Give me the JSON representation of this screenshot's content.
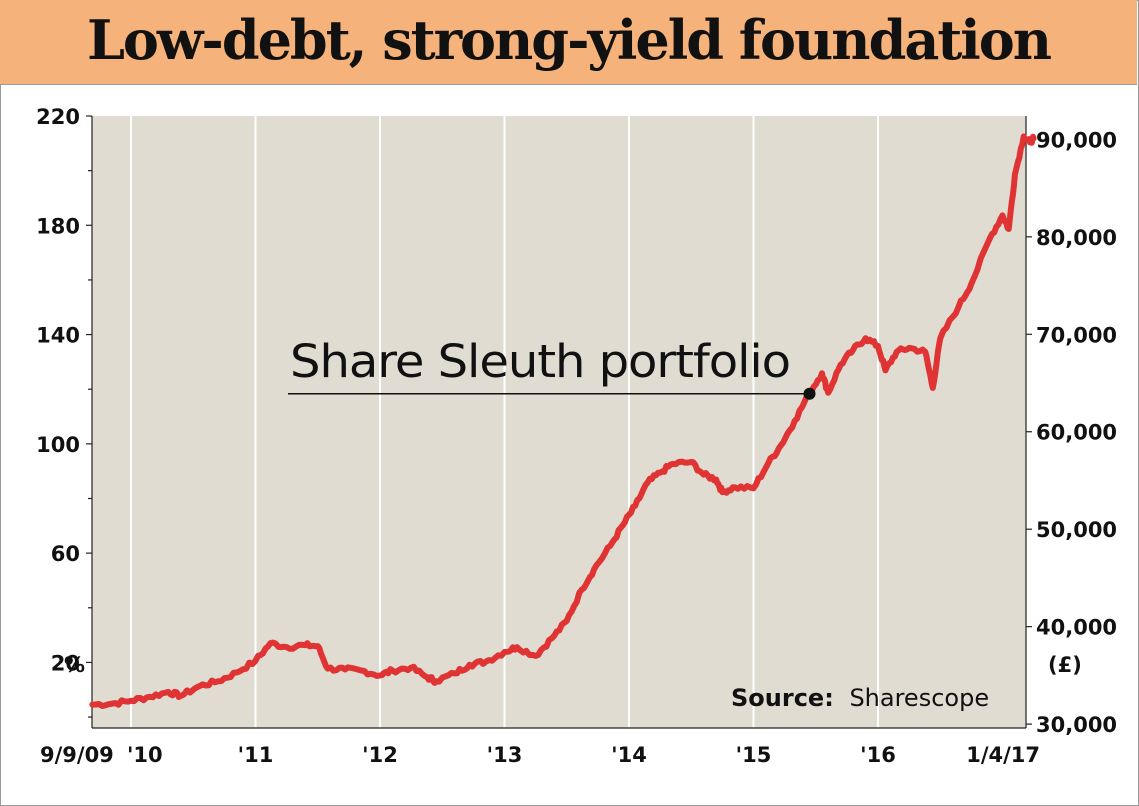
{
  "title": "Low-debt, strong-yield foundation",
  "chart_data": {
    "type": "line",
    "title": "Low-debt, strong-yield foundation",
    "series": [
      {
        "name": "Share Sleuth portfolio",
        "color": "#e03333",
        "points": [
          {
            "x": 2009.69,
            "y": 32000
          },
          {
            "x": 2009.85,
            "y": 32100
          },
          {
            "x": 2010.0,
            "y": 32400
          },
          {
            "x": 2010.15,
            "y": 32800
          },
          {
            "x": 2010.3,
            "y": 33300
          },
          {
            "x": 2010.4,
            "y": 32900
          },
          {
            "x": 2010.55,
            "y": 33900
          },
          {
            "x": 2010.7,
            "y": 34400
          },
          {
            "x": 2010.85,
            "y": 35300
          },
          {
            "x": 2011.0,
            "y": 36500
          },
          {
            "x": 2011.12,
            "y": 38300
          },
          {
            "x": 2011.25,
            "y": 37900
          },
          {
            "x": 2011.4,
            "y": 38100
          },
          {
            "x": 2011.5,
            "y": 38000
          },
          {
            "x": 2011.58,
            "y": 35700
          },
          {
            "x": 2011.72,
            "y": 35600
          },
          {
            "x": 2011.85,
            "y": 35500
          },
          {
            "x": 2012.0,
            "y": 35000
          },
          {
            "x": 2012.1,
            "y": 35500
          },
          {
            "x": 2012.25,
            "y": 35800
          },
          {
            "x": 2012.38,
            "y": 34800
          },
          {
            "x": 2012.45,
            "y": 34400
          },
          {
            "x": 2012.6,
            "y": 35200
          },
          {
            "x": 2012.72,
            "y": 36100
          },
          {
            "x": 2012.85,
            "y": 36400
          },
          {
            "x": 2013.0,
            "y": 37400
          },
          {
            "x": 2013.1,
            "y": 37900
          },
          {
            "x": 2013.25,
            "y": 37000
          },
          {
            "x": 2013.38,
            "y": 38800
          },
          {
            "x": 2013.5,
            "y": 40600
          },
          {
            "x": 2013.62,
            "y": 43800
          },
          {
            "x": 2013.72,
            "y": 45900
          },
          {
            "x": 2013.85,
            "y": 48300
          },
          {
            "x": 2013.95,
            "y": 50400
          },
          {
            "x": 2014.05,
            "y": 52400
          },
          {
            "x": 2014.15,
            "y": 54800
          },
          {
            "x": 2014.25,
            "y": 55800
          },
          {
            "x": 2014.35,
            "y": 56700
          },
          {
            "x": 2014.5,
            "y": 56900
          },
          {
            "x": 2014.6,
            "y": 55600
          },
          {
            "x": 2014.7,
            "y": 55100
          },
          {
            "x": 2014.75,
            "y": 53800
          },
          {
            "x": 2014.85,
            "y": 54300
          },
          {
            "x": 2015.0,
            "y": 54200
          },
          {
            "x": 2015.12,
            "y": 56800
          },
          {
            "x": 2015.22,
            "y": 58600
          },
          {
            "x": 2015.33,
            "y": 61100
          },
          {
            "x": 2015.45,
            "y": 64000
          },
          {
            "x": 2015.55,
            "y": 66000
          },
          {
            "x": 2015.6,
            "y": 64000
          },
          {
            "x": 2015.7,
            "y": 66900
          },
          {
            "x": 2015.8,
            "y": 68400
          },
          {
            "x": 2015.9,
            "y": 69600
          },
          {
            "x": 2016.0,
            "y": 68800
          },
          {
            "x": 2016.06,
            "y": 66300
          },
          {
            "x": 2016.15,
            "y": 68200
          },
          {
            "x": 2016.25,
            "y": 68600
          },
          {
            "x": 2016.38,
            "y": 68200
          },
          {
            "x": 2016.44,
            "y": 64500
          },
          {
            "x": 2016.5,
            "y": 69600
          },
          {
            "x": 2016.65,
            "y": 72900
          },
          {
            "x": 2016.75,
            "y": 75200
          },
          {
            "x": 2016.9,
            "y": 79900
          },
          {
            "x": 2017.0,
            "y": 82200
          },
          {
            "x": 2017.05,
            "y": 80800
          },
          {
            "x": 2017.1,
            "y": 86400
          },
          {
            "x": 2017.17,
            "y": 90300
          },
          {
            "x": 2017.22,
            "y": 89700
          },
          {
            "x": 2017.25,
            "y": 90100
          }
        ]
      }
    ],
    "x_tick_labels": [
      "9/9/09",
      "'10",
      "'11",
      "'12",
      "'13",
      "'14",
      "'15",
      "'16",
      "1/4/17"
    ],
    "x_tick_values": [
      2009.69,
      2010.0,
      2011.0,
      2012.0,
      2013.0,
      2014.0,
      2015.0,
      2016.0,
      2017.25
    ],
    "y_left": {
      "unit": "%",
      "ticks": [
        20,
        60,
        100,
        140,
        180,
        220
      ],
      "range": [
        -4,
        220
      ]
    },
    "y_right": {
      "unit": "(£)",
      "ticks": [
        "30,000",
        "40,000",
        "50,000",
        "60,000",
        "70,000",
        "80,000",
        "90,000"
      ],
      "tick_values": [
        30000,
        40000,
        50000,
        60000,
        70000,
        80000,
        90000
      ],
      "range": [
        29600,
        92400
      ]
    },
    "annotation": {
      "text": "Share Sleuth portfolio",
      "x": 2015.45,
      "y": 64000
    },
    "source": {
      "label": "Source:",
      "name": "Sharescope"
    },
    "background_color": "#e0dcd1",
    "gridlines": "vertical"
  }
}
